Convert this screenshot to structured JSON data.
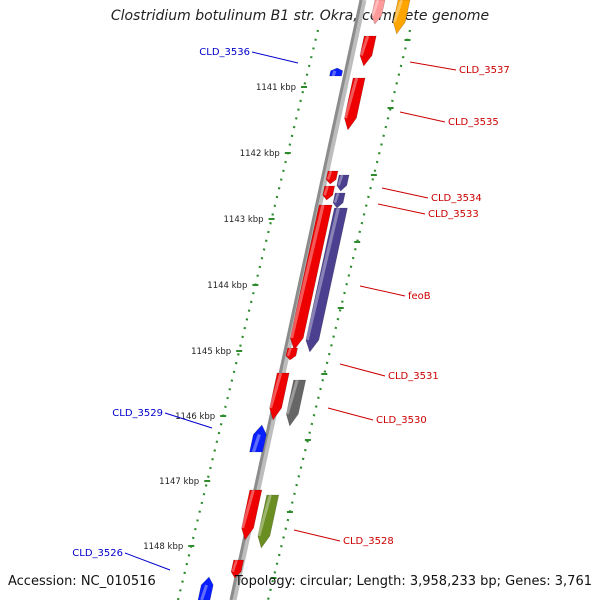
{
  "title": "Clostridium botulinum B1 str. Okra, complete genome",
  "footer": {
    "accession": "Accession: NC_010516",
    "topology": "Topology: circular; Length: 3,958,233 bp; Genes: 3,761"
  },
  "colors": {
    "backbone": "#8c8c8c",
    "tick": "#2e8b2e",
    "forward_label": "#0000cc",
    "reverse_label": "#cc0000",
    "gene_red": "#ee0000",
    "gene_blue": "#0a1fff",
    "gene_purple": "#4b3f8f",
    "gene_gray": "#666666",
    "gene_olive": "#6b8e23",
    "gene_orange": "#ffa500"
  },
  "ticks": [
    "1141 kbp",
    "1142 kbp",
    "1143 kbp",
    "1144 kbp",
    "1145 kbp",
    "1146 kbp",
    "1147 kbp",
    "1148 kbp"
  ],
  "labels": {
    "forward": [
      "CLD_3536",
      "CLD_3529",
      "CLD_3526"
    ],
    "reverse": [
      "CLD_3537",
      "CLD_3535",
      "CLD_3534",
      "CLD_3533",
      "feoB",
      "CLD_3531",
      "CLD_3530",
      "CLD_3528"
    ]
  }
}
